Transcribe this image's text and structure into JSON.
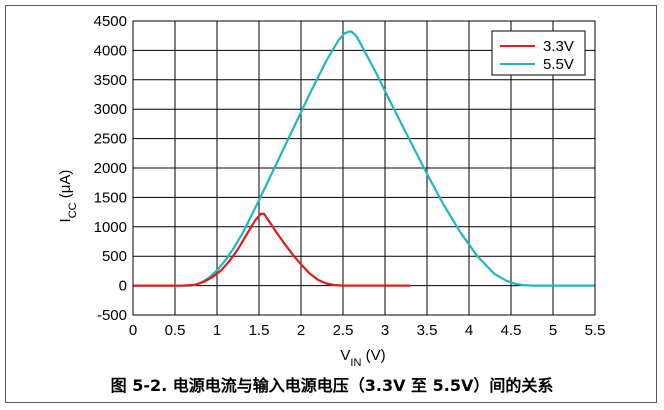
{
  "caption": "图 5-2. 电源电流与输入电源电压（3.3V 至 5.5V）间的关系",
  "chart_data": {
    "type": "line",
    "xlabel": "V_IN (V)",
    "ylabel": "I_CC (μA)",
    "xlim": [
      0,
      5.5
    ],
    "ylim": [
      -500,
      4500
    ],
    "xticks": [
      "0",
      "0.5",
      "1",
      "1.5",
      "2",
      "2.5",
      "3",
      "3.5",
      "4",
      "4.5",
      "5",
      "5.5"
    ],
    "yticks": [
      "-500",
      "0",
      "500",
      "1000",
      "1500",
      "2000",
      "2500",
      "3000",
      "3500",
      "4000",
      "4500"
    ],
    "grid": true,
    "legend_position": "top-right",
    "series": [
      {
        "name": "3.3V",
        "color": "#e41a1c",
        "x": [
          0,
          0.6,
          0.75,
          0.85,
          0.95,
          1.05,
          1.15,
          1.25,
          1.35,
          1.45,
          1.52,
          1.56,
          1.6,
          1.7,
          1.8,
          1.9,
          2.0,
          2.1,
          2.2,
          2.3,
          2.4,
          2.5,
          2.6,
          2.8,
          3.0,
          3.3
        ],
        "y": [
          0,
          0,
          15,
          70,
          150,
          260,
          420,
          620,
          860,
          1100,
          1220,
          1220,
          1140,
          920,
          720,
          530,
          360,
          210,
          100,
          35,
          8,
          0,
          0,
          0,
          0,
          0
        ]
      },
      {
        "name": "5.5V",
        "color": "#1fb8c0",
        "x": [
          0,
          0.7,
          0.8,
          0.9,
          1.0,
          1.1,
          1.2,
          1.3,
          1.5,
          1.7,
          1.9,
          2.1,
          2.3,
          2.45,
          2.52,
          2.57,
          2.6,
          2.65,
          2.7,
          2.9,
          3.1,
          3.3,
          3.5,
          3.7,
          3.9,
          4.1,
          4.3,
          4.45,
          4.55,
          4.65,
          4.75,
          4.85,
          5.0,
          5.5
        ],
        "y": [
          0,
          0,
          40,
          130,
          260,
          430,
          640,
          880,
          1450,
          2050,
          2650,
          3250,
          3820,
          4180,
          4290,
          4320,
          4320,
          4260,
          4140,
          3600,
          3020,
          2460,
          1900,
          1370,
          900,
          500,
          200,
          80,
          30,
          8,
          0,
          0,
          0,
          0
        ]
      }
    ]
  }
}
